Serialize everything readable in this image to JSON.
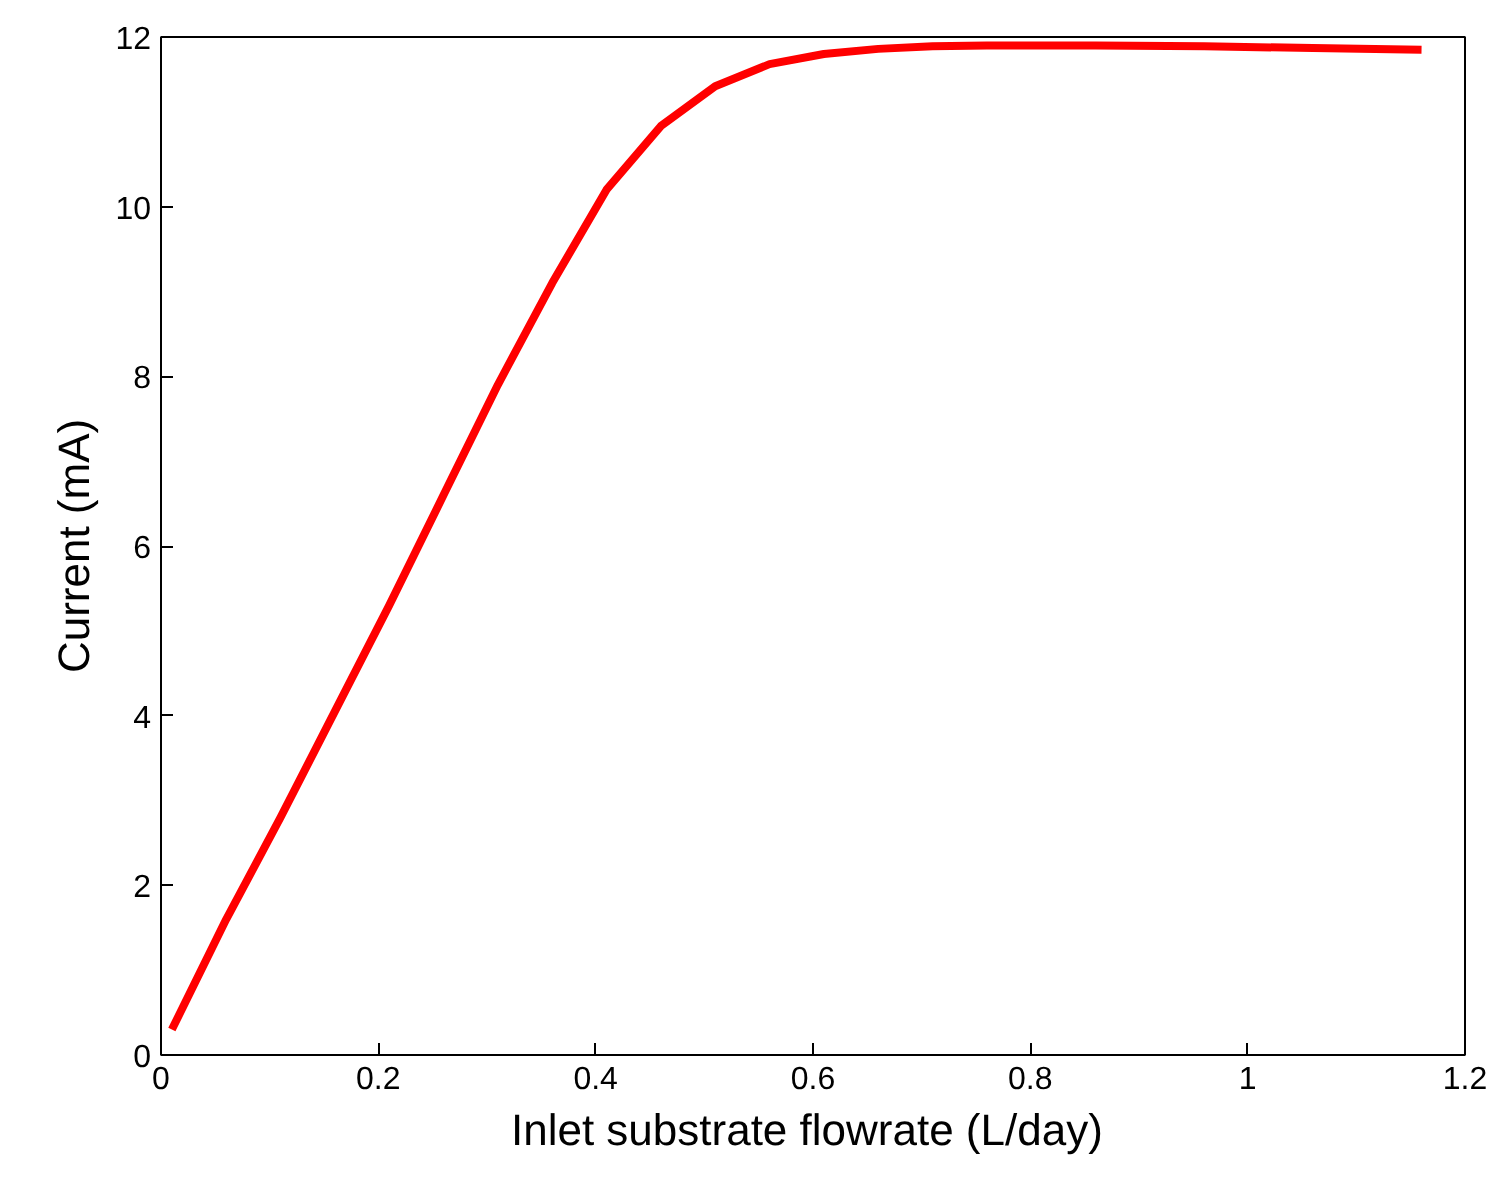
{
  "chart_data": {
    "type": "line",
    "xlabel": "Inlet substrate flowrate  (L/day)",
    "ylabel": "Current (mA)",
    "x": [
      0.01,
      0.06,
      0.11,
      0.16,
      0.21,
      0.26,
      0.31,
      0.36,
      0.41,
      0.46,
      0.51,
      0.56,
      0.61,
      0.66,
      0.71,
      0.76,
      0.81,
      0.86,
      0.96,
      1.06,
      1.16
    ],
    "series": [
      {
        "color": "#ff0000",
        "values": [
          0.3,
          1.6,
          2.8,
          4.05,
          5.3,
          6.6,
          7.9,
          9.1,
          10.2,
          10.95,
          11.42,
          11.68,
          11.8,
          11.86,
          11.89,
          11.9,
          11.9,
          11.9,
          11.89,
          11.87,
          11.85
        ]
      }
    ],
    "xlim": [
      0,
      1.2
    ],
    "xticks": [
      0,
      0.2,
      0.4,
      0.6,
      0.8,
      1,
      1.2
    ],
    "ylim": [
      0,
      12
    ],
    "yticks": [
      0,
      2,
      4,
      6,
      8,
      10,
      12
    ],
    "grid": false,
    "marker": "none",
    "line_style": "solid"
  }
}
